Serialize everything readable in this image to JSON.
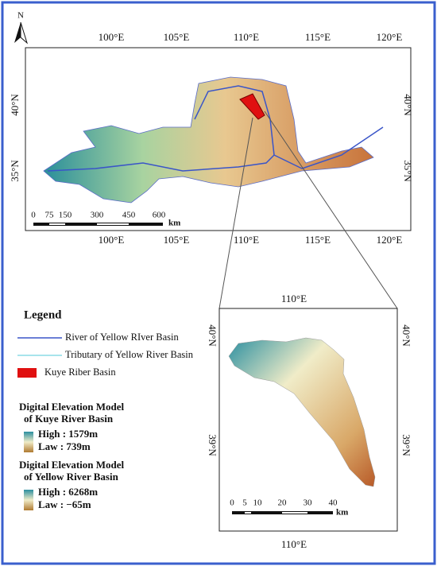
{
  "north_arrow": "N",
  "main_map": {
    "top_labels": [
      "100°E",
      "105°E",
      "110°E",
      "115°E",
      "120°E"
    ],
    "bottom_labels": [
      "100°E",
      "105°E",
      "110°E",
      "115°E",
      "120°E"
    ],
    "left_labels": [
      "40°N",
      "35°N"
    ],
    "right_labels": [
      "40°N",
      "35°N"
    ],
    "scale_bar": {
      "labels": [
        "0",
        "75",
        "150",
        "300",
        "450",
        "600"
      ],
      "unit": "km"
    }
  },
  "legend": {
    "title": "Legend",
    "items": [
      "River of Yellow RIver Basin",
      "Tributary of Yellow River Basin",
      "Kuye Riber Basin"
    ],
    "dem_kuye": {
      "title": [
        "Digital Elevation Model",
        "of Kuye River Basin"
      ],
      "high": "High : 1579m",
      "low": "Law : 739m"
    },
    "dem_yellow": {
      "title": [
        "Digital Elevation Model",
        "of Yellow River Basin"
      ],
      "high": "High : 6268m",
      "low": "Law : −65m"
    }
  },
  "inset_map": {
    "top_label": "110°E",
    "bottom_label": "110°E",
    "left_labels": [
      "40°N",
      "39°N"
    ],
    "right_labels": [
      "40°N",
      "39°N"
    ],
    "scale_bar": {
      "labels": [
        "0",
        "5",
        "10",
        "20",
        "30",
        "40"
      ],
      "unit": "km"
    }
  }
}
